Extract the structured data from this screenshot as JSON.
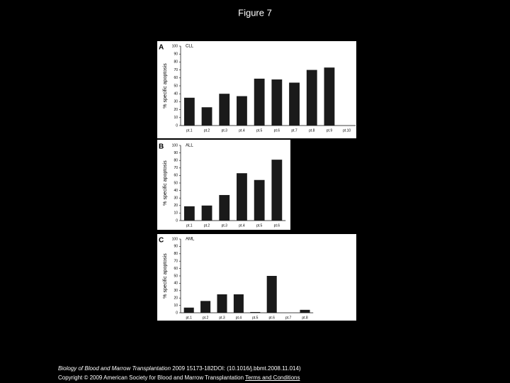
{
  "title": "Figure 7",
  "chart_data": [
    {
      "type": "bar",
      "panel": "A",
      "label": "CLL",
      "y_label": "% specific apoptosis",
      "categories": [
        "pt.1",
        "pt.2",
        "pt.3",
        "pt.4",
        "pt.5",
        "pt.6",
        "pt.7",
        "pt.8",
        "pt.9",
        "pt.10"
      ],
      "values": [
        35,
        23,
        40,
        37,
        59,
        58,
        54,
        70,
        73,
        null
      ],
      "color": "#1a1a1a",
      "ylim": [
        0,
        100
      ],
      "yticks": [
        0,
        10,
        20,
        30,
        40,
        50,
        60,
        70,
        80,
        90,
        100
      ]
    },
    {
      "type": "bar",
      "panel": "B",
      "label": "ALL",
      "y_label": "% specific apoptosis",
      "categories": [
        "pt.1",
        "pt.2",
        "pt.3",
        "pt.4",
        "pt.5",
        "pt.6"
      ],
      "values": [
        19,
        20,
        34,
        63,
        54,
        81
      ],
      "color": "#1a1a1a",
      "ylim": [
        0,
        100
      ],
      "yticks": [
        0,
        10,
        20,
        30,
        40,
        50,
        60,
        70,
        80,
        90,
        100
      ]
    },
    {
      "type": "bar",
      "panel": "C",
      "label": "AML",
      "y_label": "% specific apoptosis",
      "categories": [
        "pt.1",
        "pt.2",
        "pt.3",
        "pt.4",
        "pt.5",
        "pt.6",
        "pt.7",
        "pt.8"
      ],
      "values": [
        7,
        16,
        25,
        25,
        1,
        50,
        null,
        4
      ],
      "color": "#1a1a1a",
      "ylim": [
        0,
        100
      ],
      "yticks": [
        0,
        10,
        20,
        30,
        40,
        50,
        60,
        70,
        80,
        90,
        100
      ]
    }
  ],
  "footer": {
    "journal": "Biology of Blood and Marrow Transplantation",
    "citation": " 2009 15173-182DOI: (10.1016/j.bbmt.2008.11.014)",
    "copyright": "Copyright © 2009 American Society for Blood and Marrow Transplantation ",
    "link": "Terms and Conditions"
  }
}
